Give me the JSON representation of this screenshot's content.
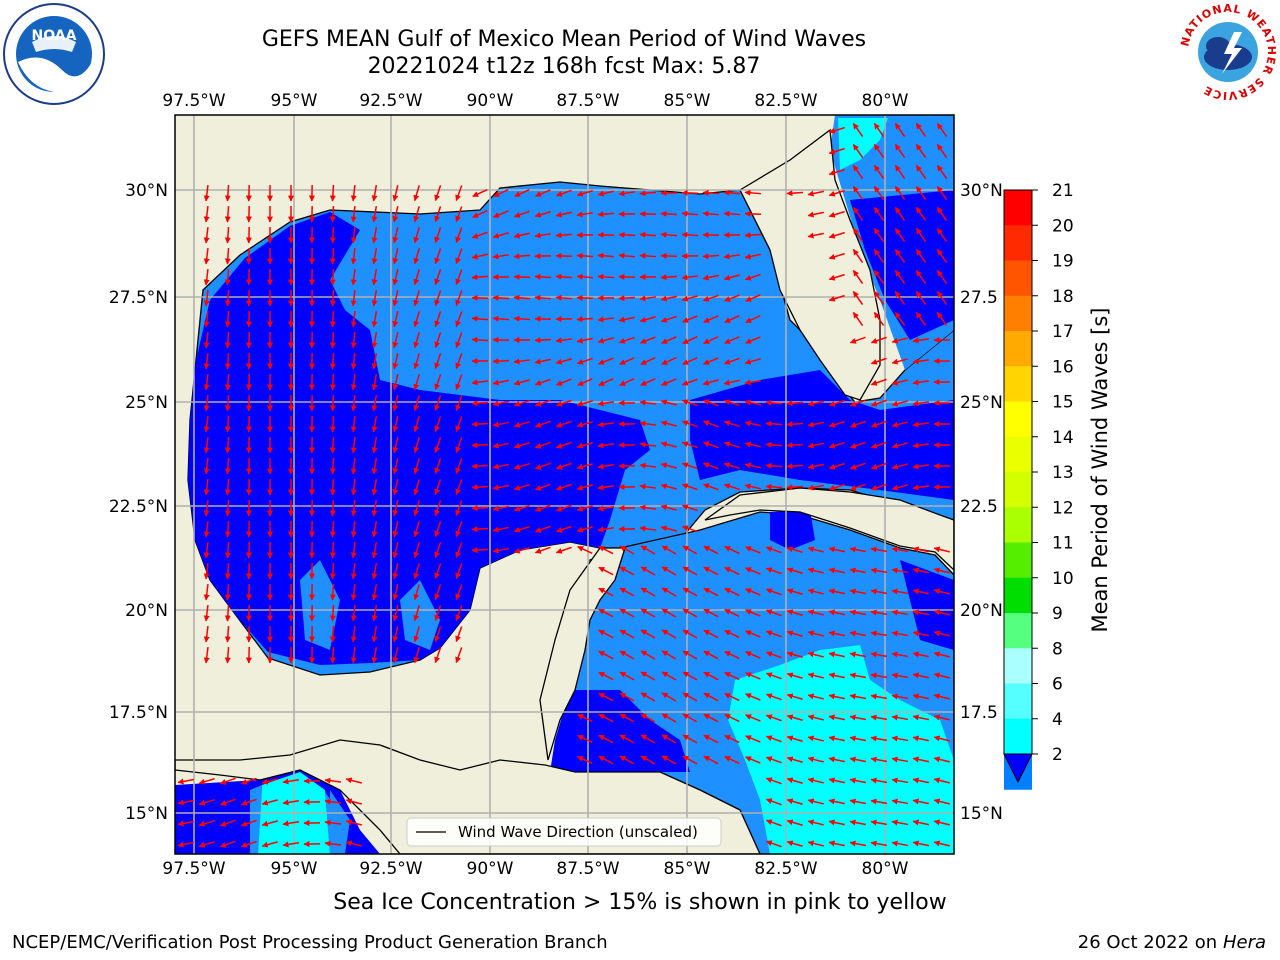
{
  "title_line1": "GEFS MEAN Gulf of Mexico Mean Period of Wind Waves",
  "title_line2": "20221024 t12z 168h fcst   Max: 5.87",
  "lon_ticks": [
    "97.5°W",
    "95°W",
    "92.5°W",
    "90°W",
    "87.5°W",
    "85°W",
    "82.5°W",
    "80°W"
  ],
  "lat_ticks": [
    "30°N",
    "27.5°N",
    "25°N",
    "22.5°N",
    "20°N",
    "17.5°N",
    "15°N"
  ],
  "lat_ticks_right": [
    "30°N",
    "27.5",
    "25°N",
    "22.5",
    "20°N",
    "17.5",
    "15°N"
  ],
  "legend_label": "Wind Wave Direction (unscaled)",
  "colorbar": {
    "title": "Mean Period of Wind Waves [s]",
    "levels": [
      "21",
      "20",
      "19",
      "18",
      "17",
      "16",
      "15",
      "14",
      "13",
      "12",
      "11",
      "10",
      "9",
      "8",
      "6",
      "4",
      "2"
    ],
    "colors": [
      "#ff0000",
      "#ff2a00",
      "#ff5500",
      "#ff7f00",
      "#ffaa00",
      "#ffd400",
      "#ffff00",
      "#eaff00",
      "#d4ff00",
      "#aaff00",
      "#55ee00",
      "#00dd00",
      "#55ff80",
      "#aaffff",
      "#55ffff",
      "#00ffff",
      "#0080ff"
    ],
    "under_color": "#0000ff"
  },
  "colors": {
    "land": "#efefdc",
    "ocean_dark": "#0000ff",
    "ocean_mid": "#1e90ff",
    "ocean_light": "#00ffff",
    "arrow": "#ff0000"
  },
  "sea_ice_note": "Sea Ice Concentration > 15% is shown in pink to yellow",
  "footer_left": "NCEP/EMC/Verification Post Processing Product Generation Branch",
  "footer_date": "26 Oct 2022 on ",
  "footer_machine": "Hera",
  "logo_left": "NOAA",
  "logo_right_ring": "NATIONAL WEATHER SERVICE"
}
